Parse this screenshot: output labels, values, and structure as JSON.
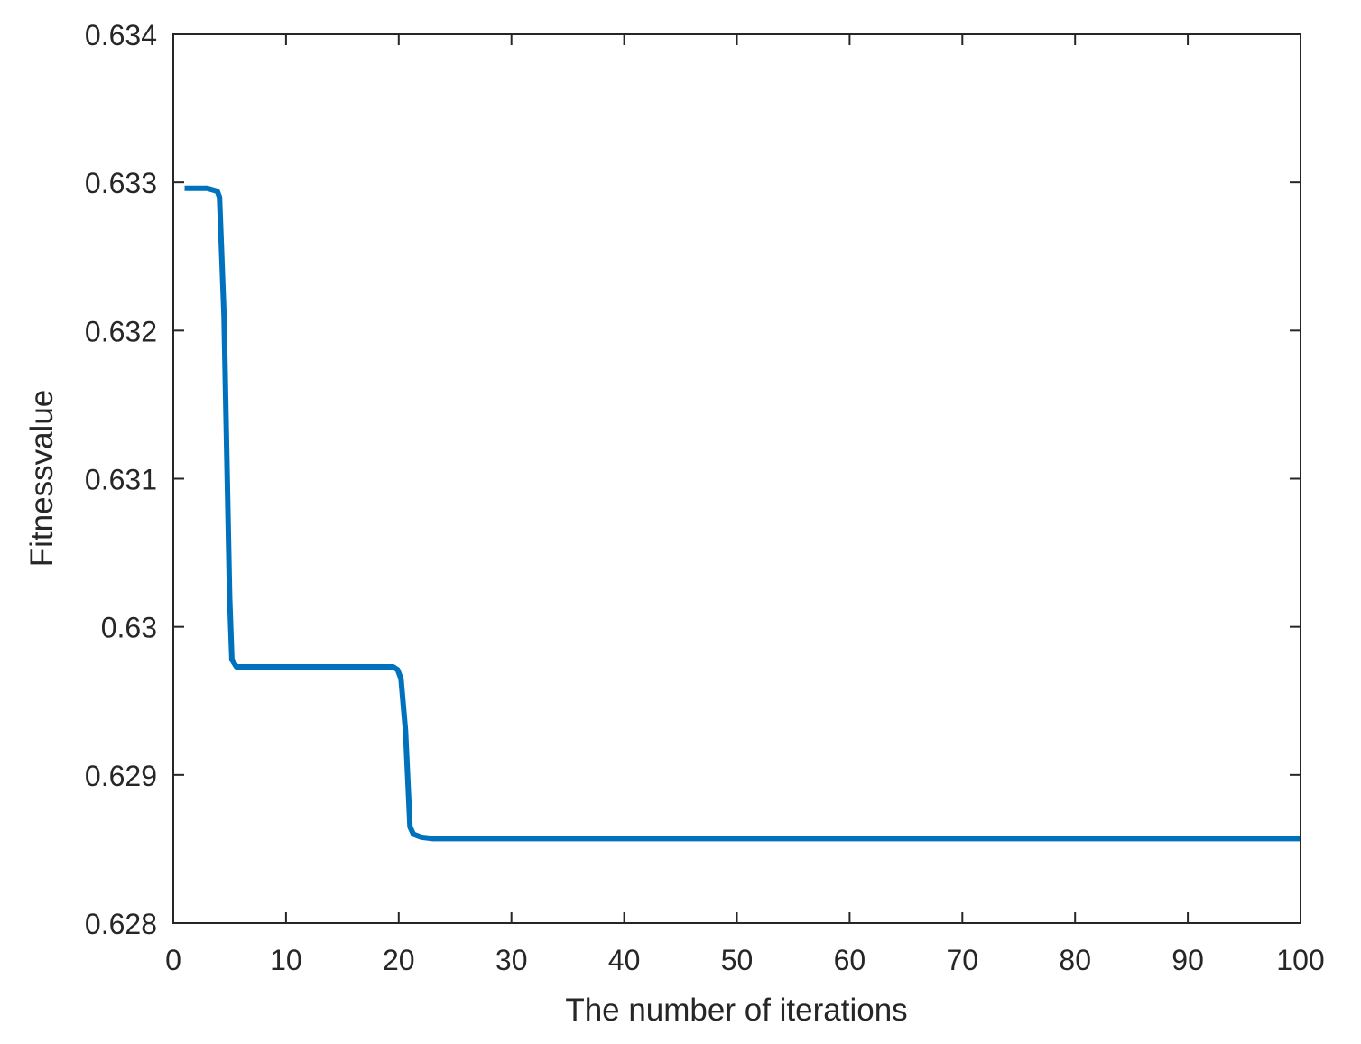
{
  "chart_data": {
    "type": "line",
    "title": "",
    "xlabel": "The number of iterations",
    "ylabel": "Fitnessvalue",
    "xlim": [
      0,
      100
    ],
    "ylim": [
      0.628,
      0.634
    ],
    "xticks": [
      0,
      10,
      20,
      30,
      40,
      50,
      60,
      70,
      80,
      90,
      100
    ],
    "xtick_labels": [
      "0",
      "10",
      "20",
      "30",
      "40",
      "50",
      "60",
      "70",
      "80",
      "90",
      "100"
    ],
    "yticks": [
      0.628,
      0.629,
      0.63,
      0.631,
      0.632,
      0.633,
      0.634
    ],
    "ytick_labels": [
      "0.628",
      "0.629",
      "0.63",
      "0.631",
      "0.632",
      "0.633",
      "0.634"
    ],
    "grid": false,
    "legend": "none",
    "series_color": "#0072bd",
    "series": [
      {
        "x": [
          1,
          3,
          3.9,
          4.1,
          4.5,
          5,
          5.2,
          5.6,
          6.5,
          19.5,
          19.9,
          20.2,
          20.6,
          21.0,
          21.3,
          22,
          23,
          100
        ],
        "y": [
          0.63296,
          0.63296,
          0.63294,
          0.6329,
          0.6321,
          0.6302,
          0.62978,
          0.62973,
          0.62973,
          0.62973,
          0.62971,
          0.62965,
          0.6293,
          0.62865,
          0.6286,
          0.62858,
          0.62857,
          0.62857
        ]
      }
    ]
  }
}
